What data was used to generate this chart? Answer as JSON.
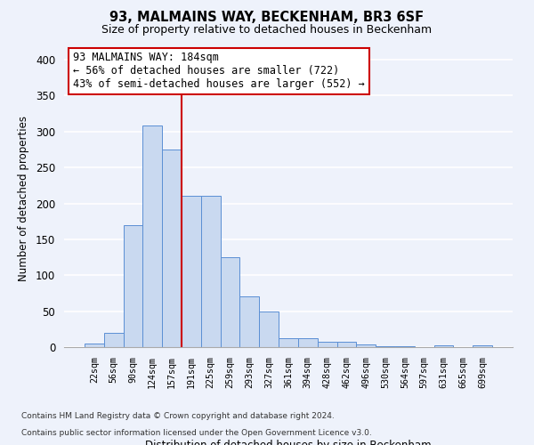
{
  "title1": "93, MALMAINS WAY, BECKENHAM, BR3 6SF",
  "title2": "Size of property relative to detached houses in Beckenham",
  "xlabel": "Distribution of detached houses by size in Beckenham",
  "ylabel": "Number of detached properties",
  "bar_labels": [
    "22sqm",
    "56sqm",
    "90sqm",
    "124sqm",
    "157sqm",
    "191sqm",
    "225sqm",
    "259sqm",
    "293sqm",
    "327sqm",
    "361sqm",
    "394sqm",
    "428sqm",
    "462sqm",
    "496sqm",
    "530sqm",
    "564sqm",
    "597sqm",
    "631sqm",
    "665sqm",
    "699sqm"
  ],
  "bar_heights": [
    5,
    20,
    170,
    308,
    275,
    210,
    210,
    125,
    70,
    49,
    13,
    13,
    7,
    8,
    4,
    1,
    1,
    0,
    3,
    0,
    3
  ],
  "bar_color": "#c9d9f0",
  "bar_edge_color": "#5b8fd4",
  "vline_color": "#cc0000",
  "annotation_title": "93 MALMAINS WAY: 184sqm",
  "annotation_line1": "← 56% of detached houses are smaller (722)",
  "annotation_line2": "43% of semi-detached houses are larger (552) →",
  "annotation_box_color": "white",
  "annotation_box_edge": "#cc0000",
  "ylim": [
    0,
    415
  ],
  "yticks": [
    0,
    50,
    100,
    150,
    200,
    250,
    300,
    350,
    400
  ],
  "footer1": "Contains HM Land Registry data © Crown copyright and database right 2024.",
  "footer2": "Contains public sector information licensed under the Open Government Licence v3.0.",
  "background_color": "#eef2fb",
  "grid_color": "white"
}
